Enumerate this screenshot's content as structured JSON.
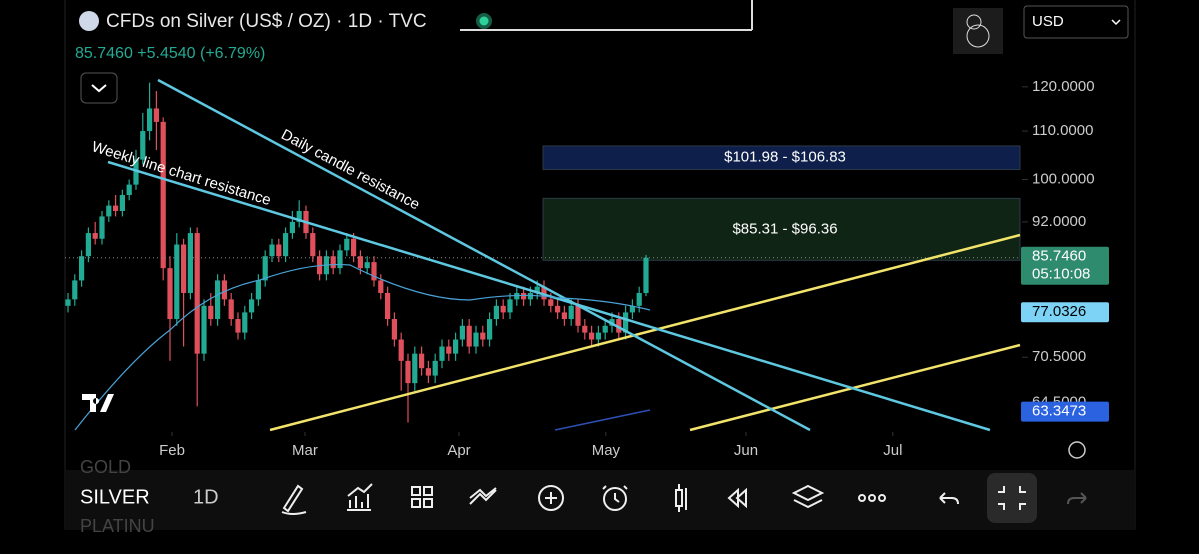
{
  "header": {
    "title": "CFDs on Silver (US$ / OZ) · 1D · TVC",
    "quote": "85.7460 +5.4540 (+6.79%)",
    "currency": "USD"
  },
  "chart_data": {
    "type": "candlestick",
    "log_scale": true,
    "annotations": [
      "Weekly line chart resistance",
      "Daily candle resistance"
    ],
    "zones": [
      {
        "label": "$101.98 - $106.83",
        "low": 101.98,
        "high": 106.83,
        "color": "#0d1f4a"
      },
      {
        "label": "$85.31 - $96.36",
        "low": 85.31,
        "high": 96.36,
        "color": "#0f2414"
      }
    ],
    "xlim": [
      -0.44,
      140
    ],
    "xticks": [
      {
        "value": 15.3,
        "label": "Feb"
      },
      {
        "value": 34.85,
        "label": "Mar"
      },
      {
        "value": 57.5,
        "label": "Apr"
      },
      {
        "value": 79.1,
        "label": "May"
      },
      {
        "value": 99.7,
        "label": "Jun"
      },
      {
        "value": 121.3,
        "label": "Jul"
      }
    ],
    "ylim": [
      61.1,
      126.5
    ],
    "yticks": [
      {
        "value": 120,
        "label": "120.0000"
      },
      {
        "value": 110,
        "label": "110.0000"
      },
      {
        "value": 100,
        "label": "100.0000"
      },
      {
        "value": 92,
        "label": "92.0000"
      },
      {
        "value": 70.5,
        "label": "70.5000"
      },
      {
        "value": 64.5,
        "label": "64.5000"
      }
    ],
    "price_badges": [
      {
        "value": 85.746,
        "label": "85.7460",
        "sub": "05:10:08",
        "color": "#2e8b6e"
      },
      {
        "value": 77.0326,
        "label": "77.0326",
        "color": "#7dd3f5"
      },
      {
        "value": 63.3473,
        "label": "63.3473",
        "color": "#2a62e0"
      }
    ],
    "up_color": "#22ab94",
    "down_color": "#e0505c",
    "candles": [
      [
        78,
        80,
        77,
        79
      ],
      [
        79,
        83,
        78,
        82
      ],
      [
        82,
        87,
        81,
        86
      ],
      [
        86,
        91,
        85,
        90
      ],
      [
        90,
        92,
        88,
        89
      ],
      [
        89,
        94,
        88,
        93
      ],
      [
        93,
        96,
        92,
        95
      ],
      [
        95,
        97,
        93,
        94
      ],
      [
        94,
        98,
        93,
        97
      ],
      [
        97,
        100,
        96,
        99
      ],
      [
        99,
        106,
        98,
        104
      ],
      [
        104,
        114,
        103,
        110
      ],
      [
        110,
        121,
        108,
        115
      ],
      [
        115,
        119,
        106,
        112
      ],
      [
        112,
        113,
        82,
        84
      ],
      [
        84,
        86,
        70,
        76
      ],
      [
        76,
        90,
        75,
        88
      ],
      [
        88,
        89,
        72,
        80
      ],
      [
        80,
        91,
        79,
        90
      ],
      [
        90,
        91,
        64,
        71
      ],
      [
        71,
        79,
        70,
        78
      ],
      [
        78,
        80,
        75,
        76
      ],
      [
        76,
        83,
        75,
        82
      ],
      [
        82,
        83,
        78,
        79
      ],
      [
        79,
        80,
        75,
        76
      ],
      [
        76,
        77,
        73,
        74
      ],
      [
        74,
        78,
        73,
        77
      ],
      [
        77,
        80,
        76,
        79
      ],
      [
        79,
        83,
        78,
        82
      ],
      [
        82,
        87,
        81,
        86
      ],
      [
        86,
        89,
        85,
        88
      ],
      [
        88,
        89,
        85,
        86
      ],
      [
        86,
        91,
        85,
        90
      ],
      [
        90,
        94,
        89,
        92
      ],
      [
        92,
        96,
        91,
        94
      ],
      [
        94,
        95,
        89,
        90
      ],
      [
        90,
        91,
        85,
        86
      ],
      [
        86,
        87,
        82,
        83
      ],
      [
        83,
        87,
        82,
        86
      ],
      [
        86,
        87,
        83,
        84
      ],
      [
        84,
        88,
        83,
        87
      ],
      [
        87,
        90,
        86,
        89
      ],
      [
        89,
        90,
        85,
        86
      ],
      [
        86,
        87,
        83,
        84
      ],
      [
        84,
        86,
        83,
        85
      ],
      [
        85,
        86,
        81,
        82
      ],
      [
        82,
        83,
        79,
        80
      ],
      [
        80,
        81,
        75,
        76
      ],
      [
        76,
        77,
        72,
        73
      ],
      [
        73,
        74,
        66,
        70
      ],
      [
        70,
        71,
        62,
        67
      ],
      [
        67,
        72,
        66,
        71
      ],
      [
        71,
        72,
        68,
        69
      ],
      [
        69,
        70,
        67,
        68
      ],
      [
        68,
        71,
        67,
        70
      ],
      [
        70,
        73,
        69,
        72
      ],
      [
        72,
        73,
        70,
        71
      ],
      [
        71,
        74,
        70,
        73
      ],
      [
        73,
        76,
        72,
        75
      ],
      [
        75,
        76,
        71,
        72
      ],
      [
        72,
        75,
        71,
        74
      ],
      [
        74,
        75,
        72,
        73
      ],
      [
        73,
        77,
        72,
        76
      ],
      [
        76,
        79,
        75,
        78
      ],
      [
        78,
        79,
        76,
        77
      ],
      [
        77,
        80,
        76,
        79
      ],
      [
        79,
        81,
        78,
        80
      ],
      [
        80,
        81,
        78,
        79
      ],
      [
        79,
        81,
        78,
        80
      ],
      [
        80,
        82,
        79,
        81
      ],
      [
        81,
        82,
        78,
        79
      ],
      [
        79,
        80,
        77,
        78
      ],
      [
        78,
        79,
        76,
        77
      ],
      [
        77,
        78,
        75,
        76
      ],
      [
        76,
        79,
        75,
        78
      ],
      [
        78,
        79,
        74,
        75
      ],
      [
        75,
        76,
        73,
        74
      ],
      [
        74,
        75,
        72,
        73
      ],
      [
        73,
        75,
        72,
        74
      ],
      [
        74,
        76,
        73,
        75
      ],
      [
        75,
        77,
        74,
        76
      ],
      [
        76,
        77,
        73,
        74
      ],
      [
        74,
        78,
        73,
        77
      ],
      [
        77,
        79,
        76,
        78
      ],
      [
        78,
        81,
        77,
        80
      ],
      [
        80,
        86.2,
        79.5,
        85.746
      ]
    ]
  },
  "toolbar": {
    "prev_symbol": "GOLD",
    "symbol": "SILVER",
    "interval": "1D",
    "next_symbol": "PLATINU"
  }
}
